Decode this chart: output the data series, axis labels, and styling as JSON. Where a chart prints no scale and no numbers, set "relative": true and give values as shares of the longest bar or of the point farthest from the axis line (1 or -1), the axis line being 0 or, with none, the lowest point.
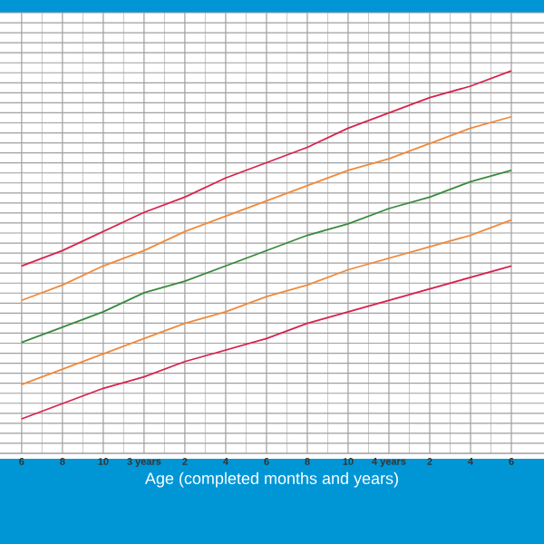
{
  "chart_data": {
    "type": "line",
    "relative": true,
    "xlabel": "Age (completed months and years)",
    "categories": [
      "6",
      "8",
      "10",
      "3 years",
      "2",
      "4",
      "6",
      "8",
      "10",
      "4 years",
      "2",
      "4",
      "6"
    ],
    "grid": true,
    "marker": "none",
    "line_style": "solid",
    "series": [
      {
        "color": "#d6254d",
        "values": [
          0.49,
          0.53,
          0.58,
          0.63,
          0.67,
          0.72,
          0.76,
          0.8,
          0.85,
          0.89,
          0.93,
          0.96,
          1.0
        ]
      },
      {
        "color": "#f08a3c",
        "values": [
          0.4,
          0.44,
          0.49,
          0.53,
          0.58,
          0.62,
          0.66,
          0.7,
          0.74,
          0.77,
          0.81,
          0.85,
          0.88
        ]
      },
      {
        "color": "#3a8a3e",
        "values": [
          0.29,
          0.33,
          0.37,
          0.42,
          0.45,
          0.49,
          0.53,
          0.57,
          0.6,
          0.64,
          0.67,
          0.71,
          0.74
        ]
      },
      {
        "color": "#f08a3c",
        "values": [
          0.18,
          0.22,
          0.26,
          0.3,
          0.34,
          0.37,
          0.41,
          0.44,
          0.48,
          0.51,
          0.54,
          0.57,
          0.61
        ]
      },
      {
        "color": "#d6254d",
        "values": [
          0.09,
          0.13,
          0.17,
          0.2,
          0.24,
          0.27,
          0.3,
          0.34,
          0.37,
          0.4,
          0.43,
          0.46,
          0.49
        ]
      }
    ]
  }
}
